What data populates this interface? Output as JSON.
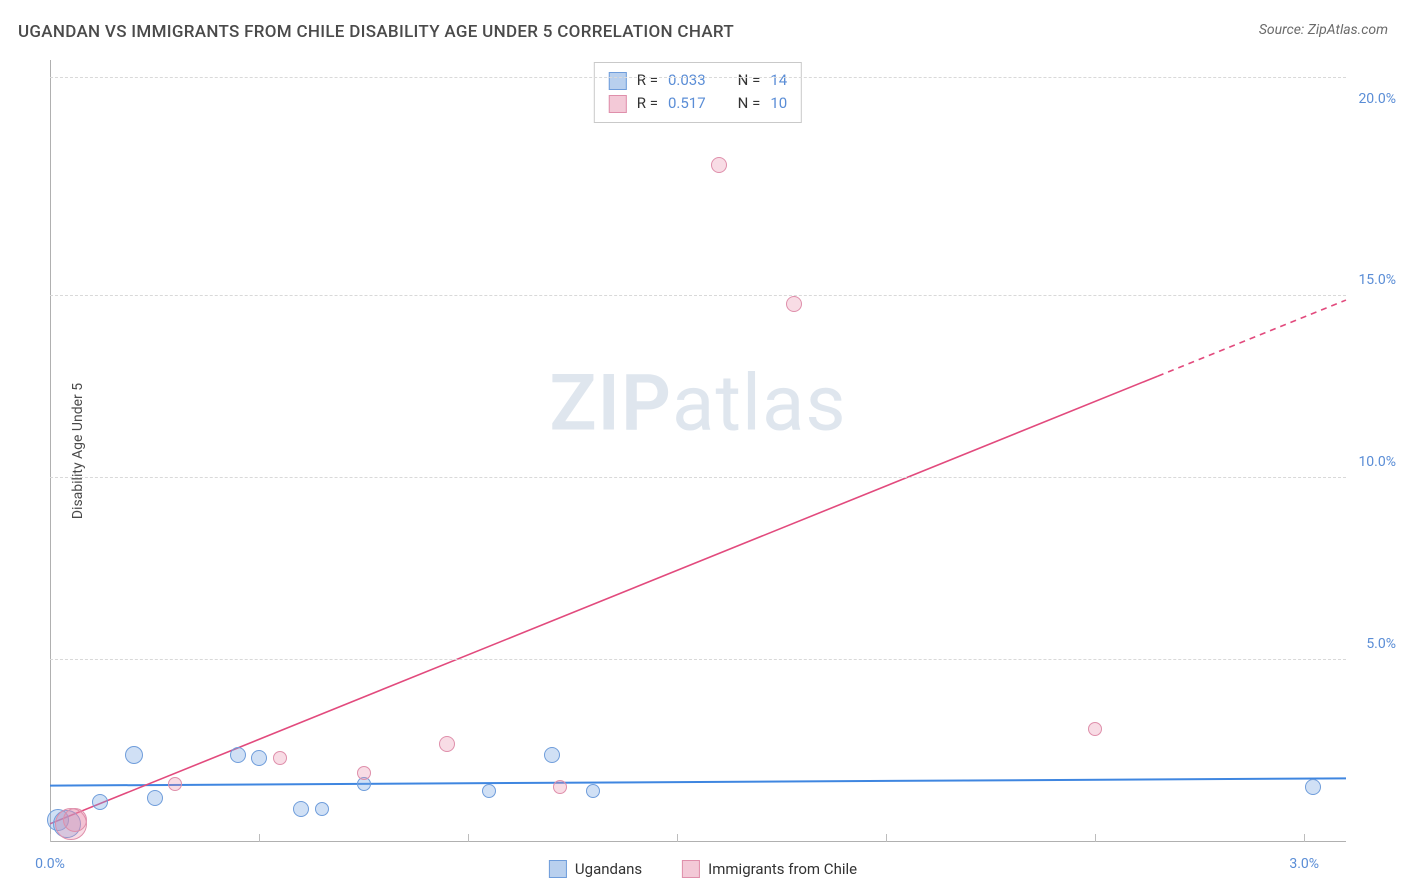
{
  "title": "UGANDAN VS IMMIGRANTS FROM CHILE DISABILITY AGE UNDER 5 CORRELATION CHART",
  "source": "Source: ZipAtlas.com",
  "ylabel": "Disability Age Under 5",
  "watermark_zip": "ZIP",
  "watermark_rest": "atlas",
  "chart": {
    "type": "scatter",
    "background_color": "#ffffff",
    "grid_color": "#d9d9d9",
    "axis_color": "#b0b0b0",
    "xlim": [
      0.0,
      3.1
    ],
    "ylim": [
      0.0,
      21.5
    ],
    "xticks_minor": [
      0.0,
      0.5,
      1.0,
      1.5,
      2.0,
      2.5,
      3.0
    ],
    "xticks_labeled": [
      {
        "v": 0.0,
        "label": "0.0%"
      },
      {
        "v": 3.0,
        "label": "3.0%"
      }
    ],
    "yticks": [
      {
        "v": 5.0,
        "label": "5.0%"
      },
      {
        "v": 10.0,
        "label": "10.0%"
      },
      {
        "v": 15.0,
        "label": "15.0%"
      },
      {
        "v": 20.0,
        "label": "20.0%"
      }
    ],
    "ygrids": [
      5.0,
      10.0,
      15.0,
      21.0
    ]
  },
  "series": [
    {
      "key": "ugandans",
      "label": "Ugandans",
      "color_fill": "rgba(120,165,225,0.35)",
      "color_stroke": "#6f9ddb",
      "swatch_fill": "#b9d0ee",
      "swatch_stroke": "#6f9ddb",
      "R": "0.033",
      "N": "14",
      "trend": {
        "color": "#3f86e0",
        "width": 2,
        "x1": 0.0,
        "y1": 1.55,
        "x2": 3.1,
        "y2": 1.75,
        "dash_from_x": null
      },
      "points": [
        {
          "x": 0.02,
          "y": 0.6,
          "r": 11
        },
        {
          "x": 0.04,
          "y": 0.5,
          "r": 14
        },
        {
          "x": 0.12,
          "y": 1.1,
          "r": 8
        },
        {
          "x": 0.2,
          "y": 2.4,
          "r": 9
        },
        {
          "x": 0.25,
          "y": 1.2,
          "r": 8
        },
        {
          "x": 0.45,
          "y": 2.4,
          "r": 8
        },
        {
          "x": 0.5,
          "y": 2.3,
          "r": 8
        },
        {
          "x": 0.6,
          "y": 0.9,
          "r": 8
        },
        {
          "x": 0.65,
          "y": 0.9,
          "r": 7
        },
        {
          "x": 0.75,
          "y": 1.6,
          "r": 7
        },
        {
          "x": 1.05,
          "y": 1.4,
          "r": 7
        },
        {
          "x": 1.2,
          "y": 2.4,
          "r": 8
        },
        {
          "x": 1.3,
          "y": 1.4,
          "r": 7
        },
        {
          "x": 3.02,
          "y": 1.5,
          "r": 8
        }
      ]
    },
    {
      "key": "chile",
      "label": "Immigrants from Chile",
      "color_fill": "rgba(232,140,170,0.30)",
      "color_stroke": "#df8fab",
      "swatch_fill": "#f3c9d7",
      "swatch_stroke": "#df8fab",
      "R": "0.517",
      "N": "10",
      "trend": {
        "color": "#e24a7d",
        "width": 1.6,
        "x1": 0.0,
        "y1": 0.5,
        "x2": 3.1,
        "y2": 14.9,
        "dash_from_x": 2.65
      },
      "points": [
        {
          "x": 0.05,
          "y": 0.5,
          "r": 16
        },
        {
          "x": 0.06,
          "y": 0.6,
          "r": 12
        },
        {
          "x": 0.3,
          "y": 1.6,
          "r": 7
        },
        {
          "x": 0.55,
          "y": 2.3,
          "r": 7
        },
        {
          "x": 0.75,
          "y": 1.9,
          "r": 7
        },
        {
          "x": 0.95,
          "y": 2.7,
          "r": 8
        },
        {
          "x": 1.22,
          "y": 1.5,
          "r": 7
        },
        {
          "x": 1.6,
          "y": 18.6,
          "r": 8
        },
        {
          "x": 1.78,
          "y": 14.8,
          "r": 8
        },
        {
          "x": 2.5,
          "y": 3.1,
          "r": 7
        }
      ]
    }
  ],
  "stats_labels": {
    "R": "R =",
    "N": "N ="
  },
  "legend_position": "bottom-center",
  "title_fontsize": 17,
  "label_fontsize": 14,
  "tick_color": "#5a8dd6",
  "watermark_color": "#dfe6ee"
}
